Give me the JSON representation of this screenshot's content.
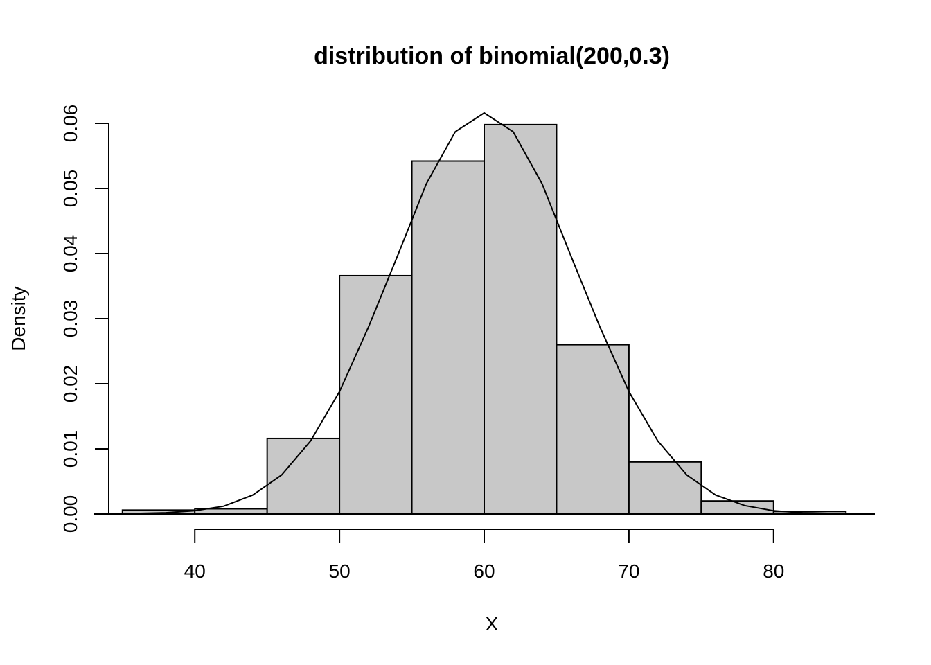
{
  "chart_data": {
    "type": "bar",
    "title": "distribution of binomial(200,0.3)",
    "xlabel": "X",
    "ylabel": "Density",
    "xlim": [
      33,
      87
    ],
    "ylim": [
      0,
      0.06
    ],
    "x_ticks": [
      40,
      50,
      60,
      70,
      80
    ],
    "y_ticks": [
      0.0,
      0.01,
      0.02,
      0.03,
      0.04,
      0.05,
      0.06
    ],
    "y_tick_labels": [
      "0.00",
      "0.01",
      "0.02",
      "0.03",
      "0.04",
      "0.05",
      "0.06"
    ],
    "bins": [
      {
        "start": 35,
        "end": 40,
        "density": 0.0006
      },
      {
        "start": 40,
        "end": 45,
        "density": 0.0008
      },
      {
        "start": 45,
        "end": 50,
        "density": 0.0116
      },
      {
        "start": 50,
        "end": 55,
        "density": 0.0366
      },
      {
        "start": 55,
        "end": 60,
        "density": 0.0542
      },
      {
        "start": 60,
        "end": 65,
        "density": 0.0598
      },
      {
        "start": 65,
        "end": 70,
        "density": 0.026
      },
      {
        "start": 70,
        "end": 75,
        "density": 0.008
      },
      {
        "start": 75,
        "end": 80,
        "density": 0.002
      },
      {
        "start": 80,
        "end": 85,
        "density": 0.0004
      }
    ],
    "curve": {
      "x": [
        33,
        36,
        38,
        40,
        42,
        44,
        46,
        48,
        50,
        52,
        54,
        56,
        58,
        60,
        62,
        64,
        66,
        68,
        70,
        72,
        74,
        76,
        78,
        80,
        82,
        84,
        86
      ],
      "y": [
        0.0,
        0.0001,
        0.0002,
        0.0005,
        0.0012,
        0.0029,
        0.006,
        0.0112,
        0.0188,
        0.0287,
        0.0396,
        0.0507,
        0.0587,
        0.0616,
        0.0587,
        0.0507,
        0.0396,
        0.0287,
        0.0188,
        0.0112,
        0.006,
        0.0029,
        0.0013,
        0.0005,
        0.0002,
        0.0001,
        0.0
      ]
    }
  }
}
